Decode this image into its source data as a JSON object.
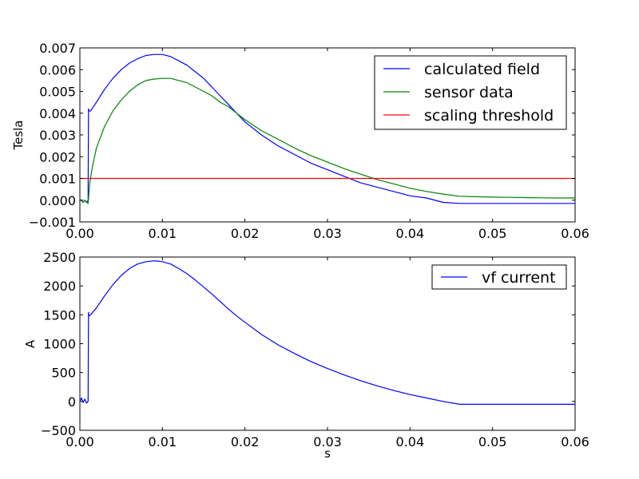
{
  "chart_data": [
    {
      "type": "line",
      "title": "",
      "xlabel": "",
      "ylabel": "Tesla",
      "xlim": [
        0,
        0.06
      ],
      "ylim": [
        -0.001,
        0.007
      ],
      "xticks": [
        "0.00",
        "0.01",
        "0.02",
        "0.03",
        "0.04",
        "0.05",
        "0.06"
      ],
      "yticks": [
        "−0.001",
        "0.000",
        "0.001",
        "0.002",
        "0.003",
        "0.004",
        "0.005",
        "0.006",
        "0.007"
      ],
      "grid": false,
      "legend_position": "upper-right",
      "series": [
        {
          "name": "calculated field",
          "color": "#0000ff",
          "x": [
            0,
            0.0002,
            0.0004,
            0.0006,
            0.0008,
            0.001,
            0.00105,
            0.0011,
            0.0013,
            0.002,
            0.003,
            0.004,
            0.005,
            0.006,
            0.007,
            0.008,
            0.009,
            0.0095,
            0.01,
            0.011,
            0.012,
            0.013,
            0.014,
            0.015,
            0.016,
            0.017,
            0.018,
            0.019,
            0.02,
            0.022,
            0.024,
            0.026,
            0.028,
            0.03,
            0.032,
            0.034,
            0.036,
            0.038,
            0.04,
            0.042,
            0.044,
            0.046,
            0.048,
            0.05,
            0.052,
            0.054,
            0.056,
            0.058,
            0.06
          ],
          "y": [
            0.0,
            0.0,
            -0.0001,
            0.0,
            -0.0001,
            0.0,
            0.0042,
            0.0041,
            0.0041,
            0.0045,
            0.0051,
            0.0056,
            0.006,
            0.0063,
            0.0065,
            0.00665,
            0.0067,
            0.0067,
            0.0067,
            0.0066,
            0.0064,
            0.0062,
            0.0059,
            0.0056,
            0.0052,
            0.0048,
            0.0044,
            0.004,
            0.0036,
            0.003,
            0.0025,
            0.0021,
            0.0017,
            0.0014,
            0.0011,
            0.0008,
            0.0006,
            0.0004,
            0.0002,
            0.0001,
            -0.0001,
            -0.00015,
            -0.00015,
            -0.00015,
            -0.00015,
            -0.00015,
            -0.00015,
            -0.00015,
            -0.00015
          ]
        },
        {
          "name": "sensor data",
          "color": "#008000",
          "x": [
            0,
            0.0002,
            0.0004,
            0.0006,
            0.0008,
            0.001,
            0.0012,
            0.0015,
            0.002,
            0.003,
            0.004,
            0.005,
            0.006,
            0.007,
            0.008,
            0.009,
            0.01,
            0.011,
            0.012,
            0.013,
            0.014,
            0.015,
            0.016,
            0.017,
            0.018,
            0.019,
            0.02,
            0.022,
            0.024,
            0.026,
            0.028,
            0.03,
            0.032,
            0.034,
            0.036,
            0.038,
            0.04,
            0.042,
            0.044,
            0.046,
            0.048,
            0.05,
            0.052,
            0.054,
            0.056,
            0.058,
            0.06
          ],
          "y": [
            0.0,
            0.0,
            -0.0001,
            0.0,
            -0.0001,
            -0.00015,
            0.0008,
            0.0015,
            0.0024,
            0.0034,
            0.0041,
            0.0046,
            0.005,
            0.0053,
            0.0055,
            0.00557,
            0.0056,
            0.0056,
            0.0055,
            0.0054,
            0.0052,
            0.005,
            0.0048,
            0.0045,
            0.0043,
            0.004,
            0.0037,
            0.0032,
            0.0028,
            0.0024,
            0.00205,
            0.00175,
            0.00145,
            0.0012,
            0.00095,
            0.00075,
            0.00055,
            0.0004,
            0.00028,
            0.00018,
            0.00016,
            0.00014,
            0.00013,
            0.00012,
            0.00011,
            0.0001,
            0.0001
          ]
        },
        {
          "name": "scaling threshold",
          "color": "#ff0000",
          "x": [
            0,
            0.06
          ],
          "y": [
            0.001,
            0.001
          ]
        }
      ]
    },
    {
      "type": "line",
      "title": "",
      "xlabel": "s",
      "ylabel": "A",
      "xlim": [
        0,
        0.06
      ],
      "ylim": [
        -500,
        2500
      ],
      "xticks": [
        "0.00",
        "0.01",
        "0.02",
        "0.03",
        "0.04",
        "0.05",
        "0.06"
      ],
      "yticks": [
        "−500",
        "0",
        "500",
        "1000",
        "1500",
        "2000",
        "2500"
      ],
      "grid": false,
      "legend_position": "upper-right",
      "series": [
        {
          "name": "vf current",
          "color": "#0000ff",
          "x": [
            0,
            0.0002,
            0.0004,
            0.0006,
            0.0008,
            0.001,
            0.00105,
            0.0011,
            0.0013,
            0.002,
            0.003,
            0.004,
            0.005,
            0.006,
            0.007,
            0.008,
            0.009,
            0.0095,
            0.01,
            0.011,
            0.012,
            0.013,
            0.014,
            0.015,
            0.016,
            0.017,
            0.018,
            0.019,
            0.02,
            0.022,
            0.024,
            0.026,
            0.028,
            0.03,
            0.032,
            0.034,
            0.036,
            0.038,
            0.04,
            0.042,
            0.044,
            0.046,
            0.048,
            0.05,
            0.052,
            0.054,
            0.056,
            0.058,
            0.06
          ],
          "y": [
            0,
            60,
            -20,
            40,
            -30,
            0,
            1540,
            1480,
            1500,
            1620,
            1830,
            2020,
            2180,
            2300,
            2380,
            2420,
            2435,
            2430,
            2420,
            2380,
            2300,
            2210,
            2100,
            1980,
            1860,
            1730,
            1600,
            1480,
            1370,
            1160,
            980,
            830,
            690,
            570,
            460,
            360,
            270,
            190,
            120,
            60,
            0,
            -50,
            -50,
            -50,
            -50,
            -50,
            -50,
            -50,
            -50
          ]
        }
      ]
    }
  ]
}
